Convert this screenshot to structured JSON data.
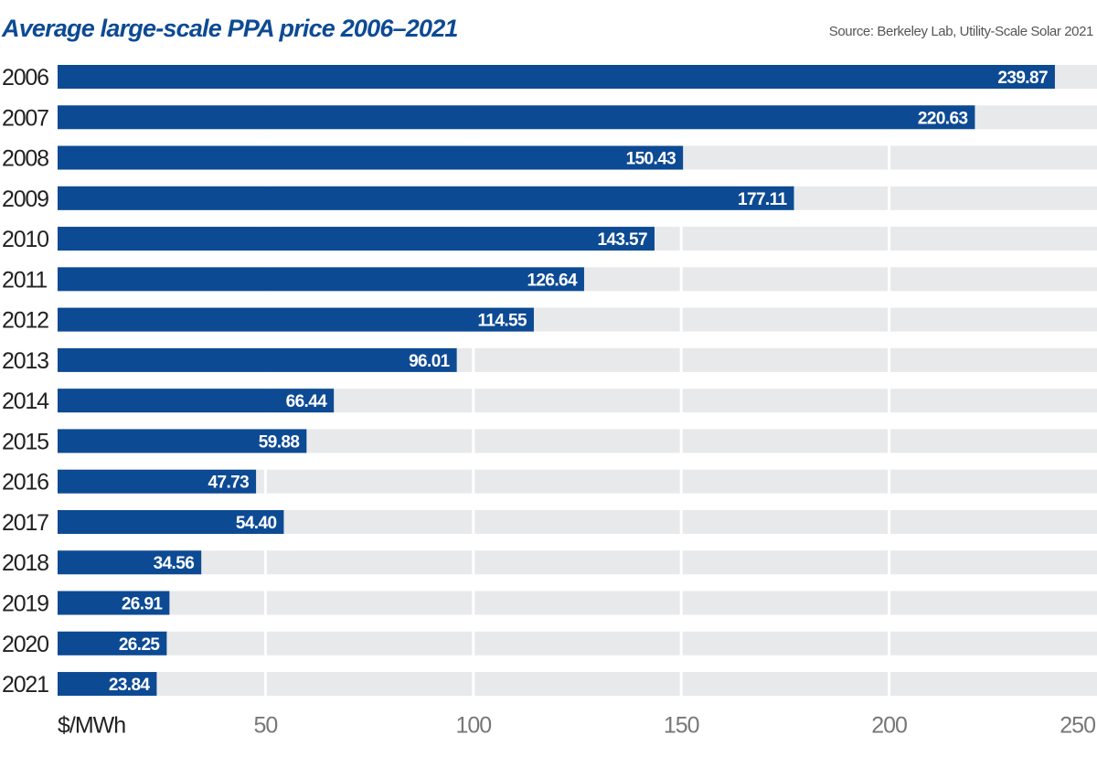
{
  "chart_data": {
    "type": "bar",
    "orientation": "horizontal",
    "title": "Average large-scale PPA price 2006–2021",
    "source": "Source: Berkeley Lab, Utility-Scale Solar 2021",
    "xlabel": "$/MWh",
    "categories": [
      "2006",
      "2007",
      "2008",
      "2009",
      "2010",
      "2011",
      "2012",
      "2013",
      "2014",
      "2015",
      "2016",
      "2017",
      "2018",
      "2019",
      "2020",
      "2021"
    ],
    "values": [
      239.87,
      220.63,
      150.43,
      177.11,
      143.57,
      126.64,
      114.55,
      96.01,
      66.44,
      59.88,
      47.73,
      54.4,
      34.56,
      26.91,
      26.25,
      23.84
    ],
    "value_labels": [
      "239.87",
      "220.63",
      "150.43",
      "177.11",
      "143.57",
      "126.64",
      "114.55",
      "96.01",
      "66.44",
      "59.88",
      "47.73",
      "54.40",
      "34.56",
      "26.91",
      "26.25",
      "23.84"
    ],
    "xlim": [
      0,
      250
    ],
    "xticks": [
      50,
      100,
      150,
      200,
      250
    ],
    "grid": true,
    "colors": {
      "bar": "#0d4a94",
      "track": "#e8e9eb",
      "title": "#0d4a94"
    }
  }
}
